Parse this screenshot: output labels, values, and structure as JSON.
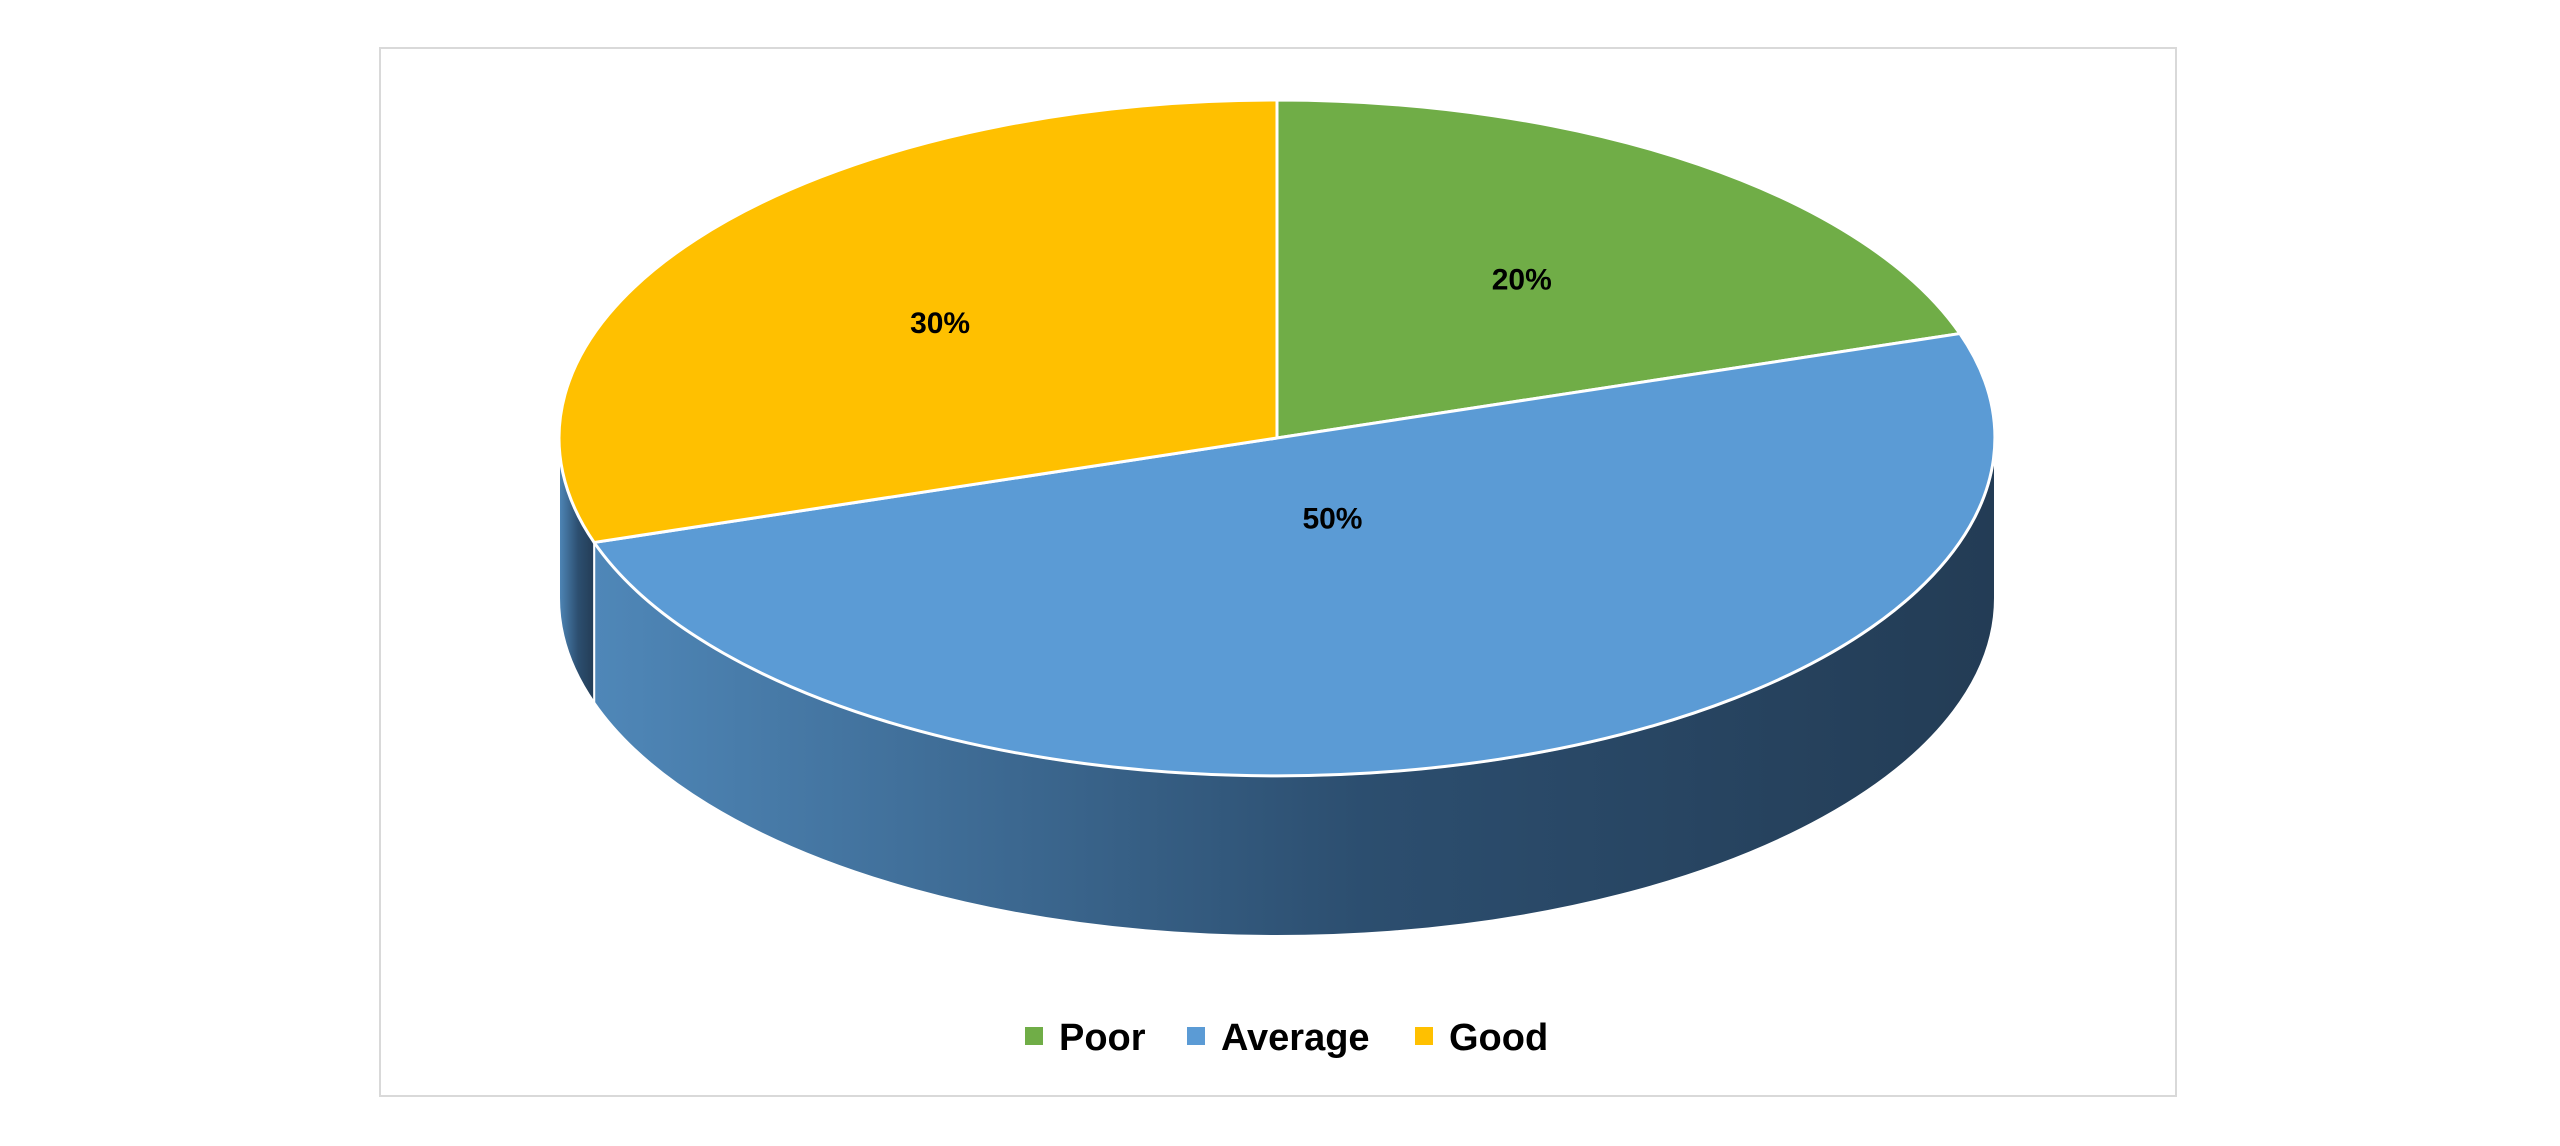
{
  "chart_data": {
    "type": "pie",
    "style": "3d",
    "title": "",
    "slices": [
      {
        "label": "Poor",
        "value": 20,
        "data_label": "20%",
        "color": "#70ad47"
      },
      {
        "label": "Average",
        "value": 50,
        "data_label": "50%",
        "color": "#5b9bd5"
      },
      {
        "label": "Good",
        "value": 30,
        "data_label": "30%",
        "color": "#ffc000"
      }
    ],
    "legend_placement": "bottom",
    "label_color": "#000000"
  }
}
